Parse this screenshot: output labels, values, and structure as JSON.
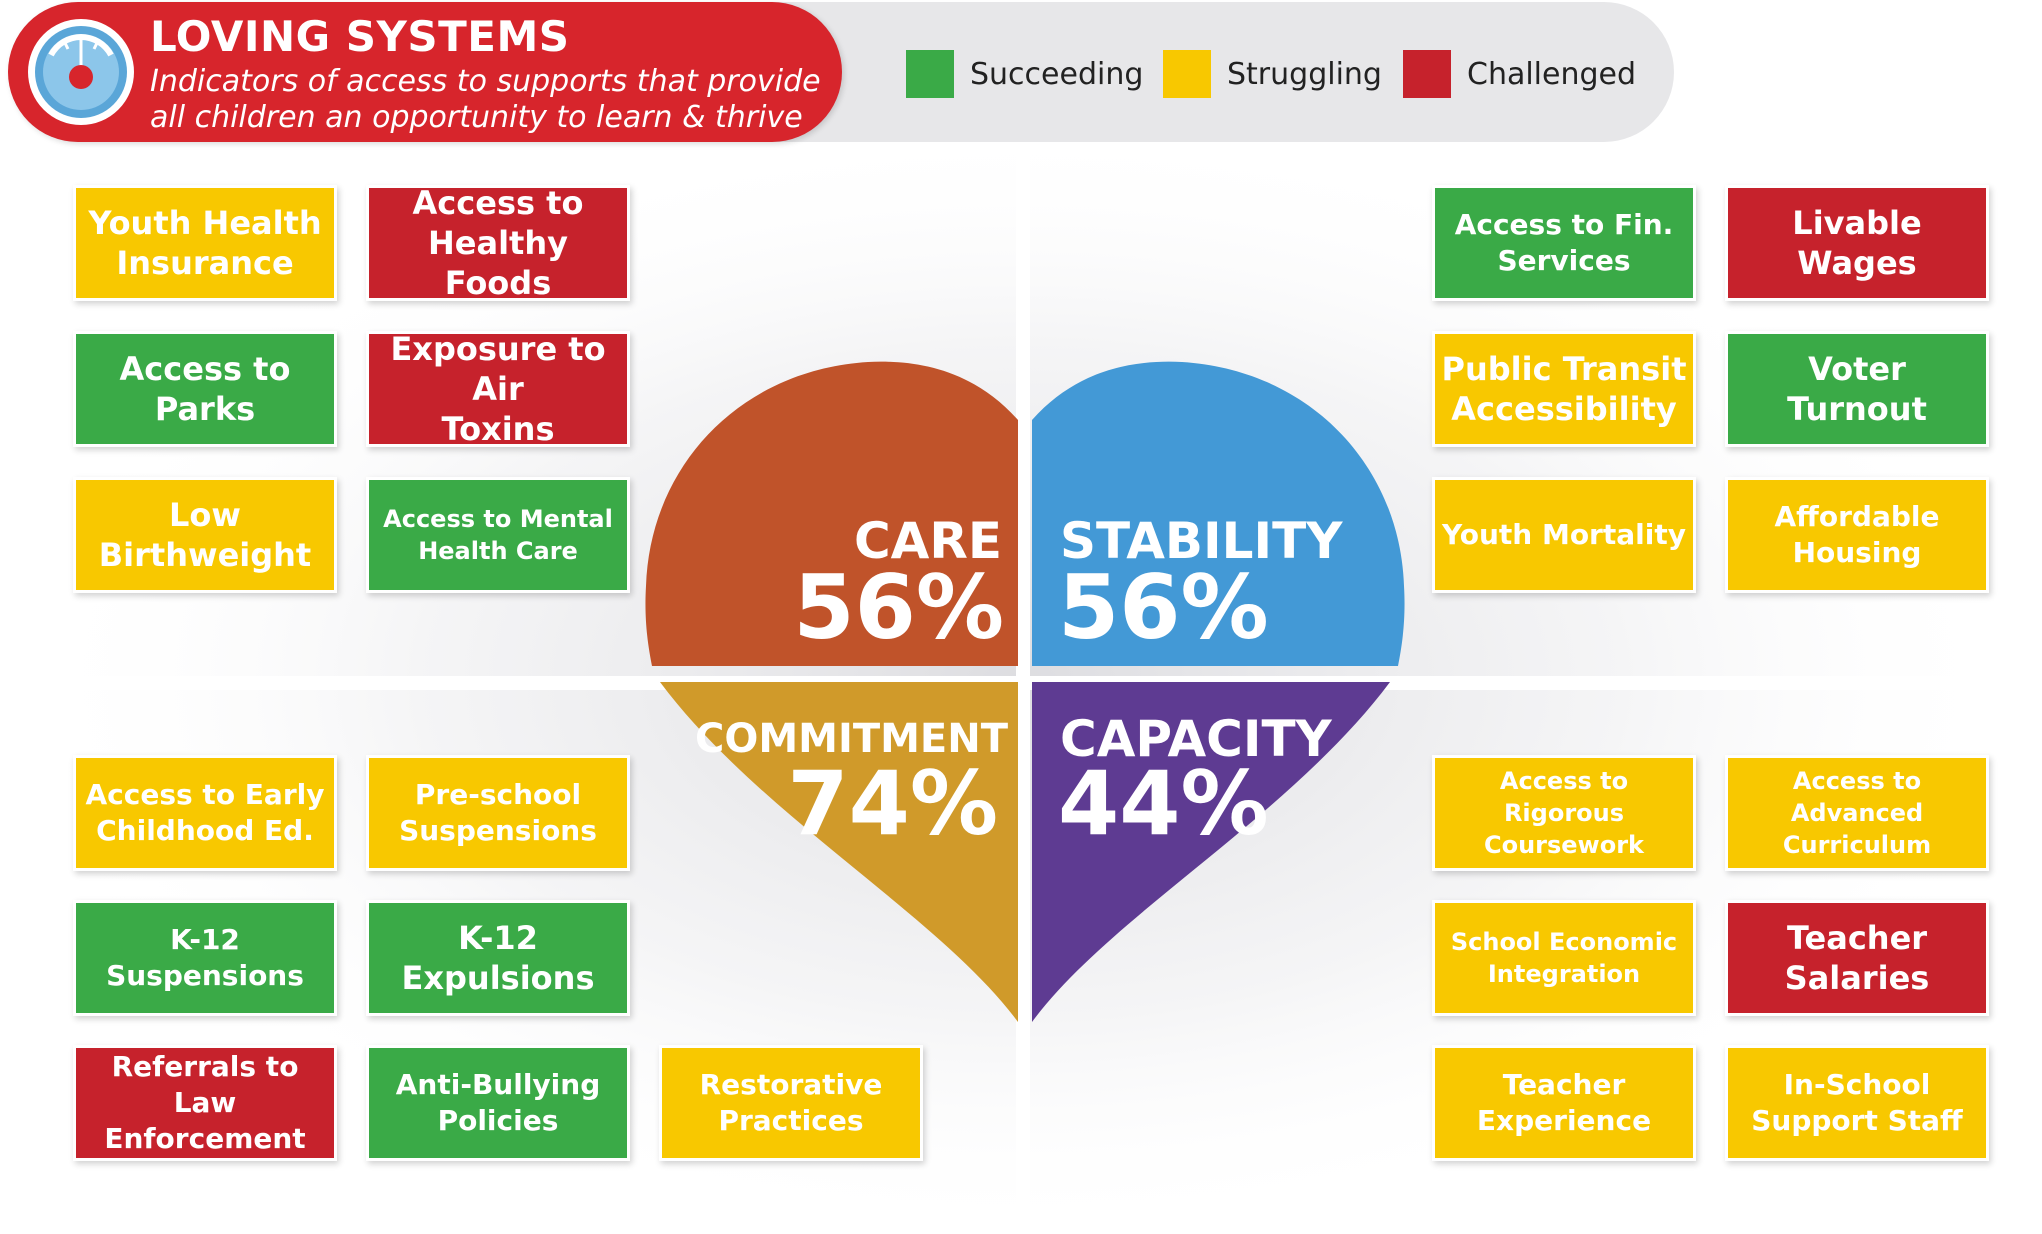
{
  "header": {
    "title": "LOVING SYSTEMS",
    "subtitle_line1": "Indicators of access to supports that provide",
    "subtitle_line2": "all children an opportunity to learn & thrive",
    "icon": "gauge-heart-icon"
  },
  "legend": [
    {
      "label": "Succeeding",
      "color": "#3aaa47"
    },
    {
      "label": "Struggling",
      "color": "#f8c800"
    },
    {
      "label": "Challenged",
      "color": "#c6222c"
    }
  ],
  "pillars": {
    "care": {
      "name": "CARE",
      "percent": "56%",
      "color": "#c0532a"
    },
    "stability": {
      "name": "STABILITY",
      "percent": "56%",
      "color": "#4399d6"
    },
    "commitment": {
      "name": "COMMITMENT",
      "percent": "74%",
      "color": "#d09a2a"
    },
    "capacity": {
      "name": "CAPACITY",
      "percent": "44%",
      "color": "#5e3b92"
    }
  },
  "care_tiles": [
    {
      "line1": "Youth Health",
      "line2": "Insurance",
      "status": "struggling"
    },
    {
      "line1": "Access to",
      "line2": "Healthy Foods",
      "status": "challenged"
    },
    {
      "line1": "Access to Parks",
      "line2": "",
      "status": "succeeding"
    },
    {
      "line1": "Exposure to Air",
      "line2": "Toxins",
      "status": "challenged"
    },
    {
      "line1": "Low",
      "line2": "Birthweight",
      "status": "struggling"
    },
    {
      "line1": "Access to Mental",
      "line2": "Health Care",
      "status": "succeeding"
    }
  ],
  "stability_tiles": [
    {
      "line1": "Access to Fin.",
      "line2": "Services",
      "status": "succeeding"
    },
    {
      "line1": "Livable Wages",
      "line2": "",
      "status": "challenged"
    },
    {
      "line1": "Public Transit",
      "line2": "Accessibility",
      "status": "struggling"
    },
    {
      "line1": "Voter Turnout",
      "line2": "",
      "status": "succeeding"
    },
    {
      "line1": "Youth Mortality",
      "line2": "",
      "status": "struggling"
    },
    {
      "line1": "Affordable",
      "line2": "Housing",
      "status": "struggling"
    }
  ],
  "commitment_tiles": [
    {
      "line1": "Access to Early",
      "line2": "Childhood Ed.",
      "status": "struggling"
    },
    {
      "line1": "Pre-school",
      "line2": "Suspensions",
      "status": "struggling"
    },
    {
      "line1": "K-12",
      "line2": "Suspensions",
      "status": "succeeding"
    },
    {
      "line1": "K-12",
      "line2": "Expulsions",
      "status": "succeeding"
    },
    {
      "line1": "Referrals to Law",
      "line2": "Enforcement",
      "status": "challenged"
    },
    {
      "line1": "Anti-Bullying",
      "line2": "Policies",
      "status": "succeeding"
    },
    {
      "line1": "Restorative",
      "line2": "Practices",
      "status": "struggling"
    }
  ],
  "capacity_tiles": [
    {
      "line1": "Access to Rigorous",
      "line2": "Coursework",
      "status": "struggling"
    },
    {
      "line1": "Access to Advanced",
      "line2": "Curriculum",
      "status": "struggling"
    },
    {
      "line1": "School Economic",
      "line2": "Integration",
      "status": "struggling"
    },
    {
      "line1": "Teacher",
      "line2": "Salaries",
      "status": "challenged"
    },
    {
      "line1": "Teacher",
      "line2": "Experience",
      "status": "struggling"
    },
    {
      "line1": "In-School",
      "line2": "Support Staff",
      "status": "struggling"
    }
  ]
}
